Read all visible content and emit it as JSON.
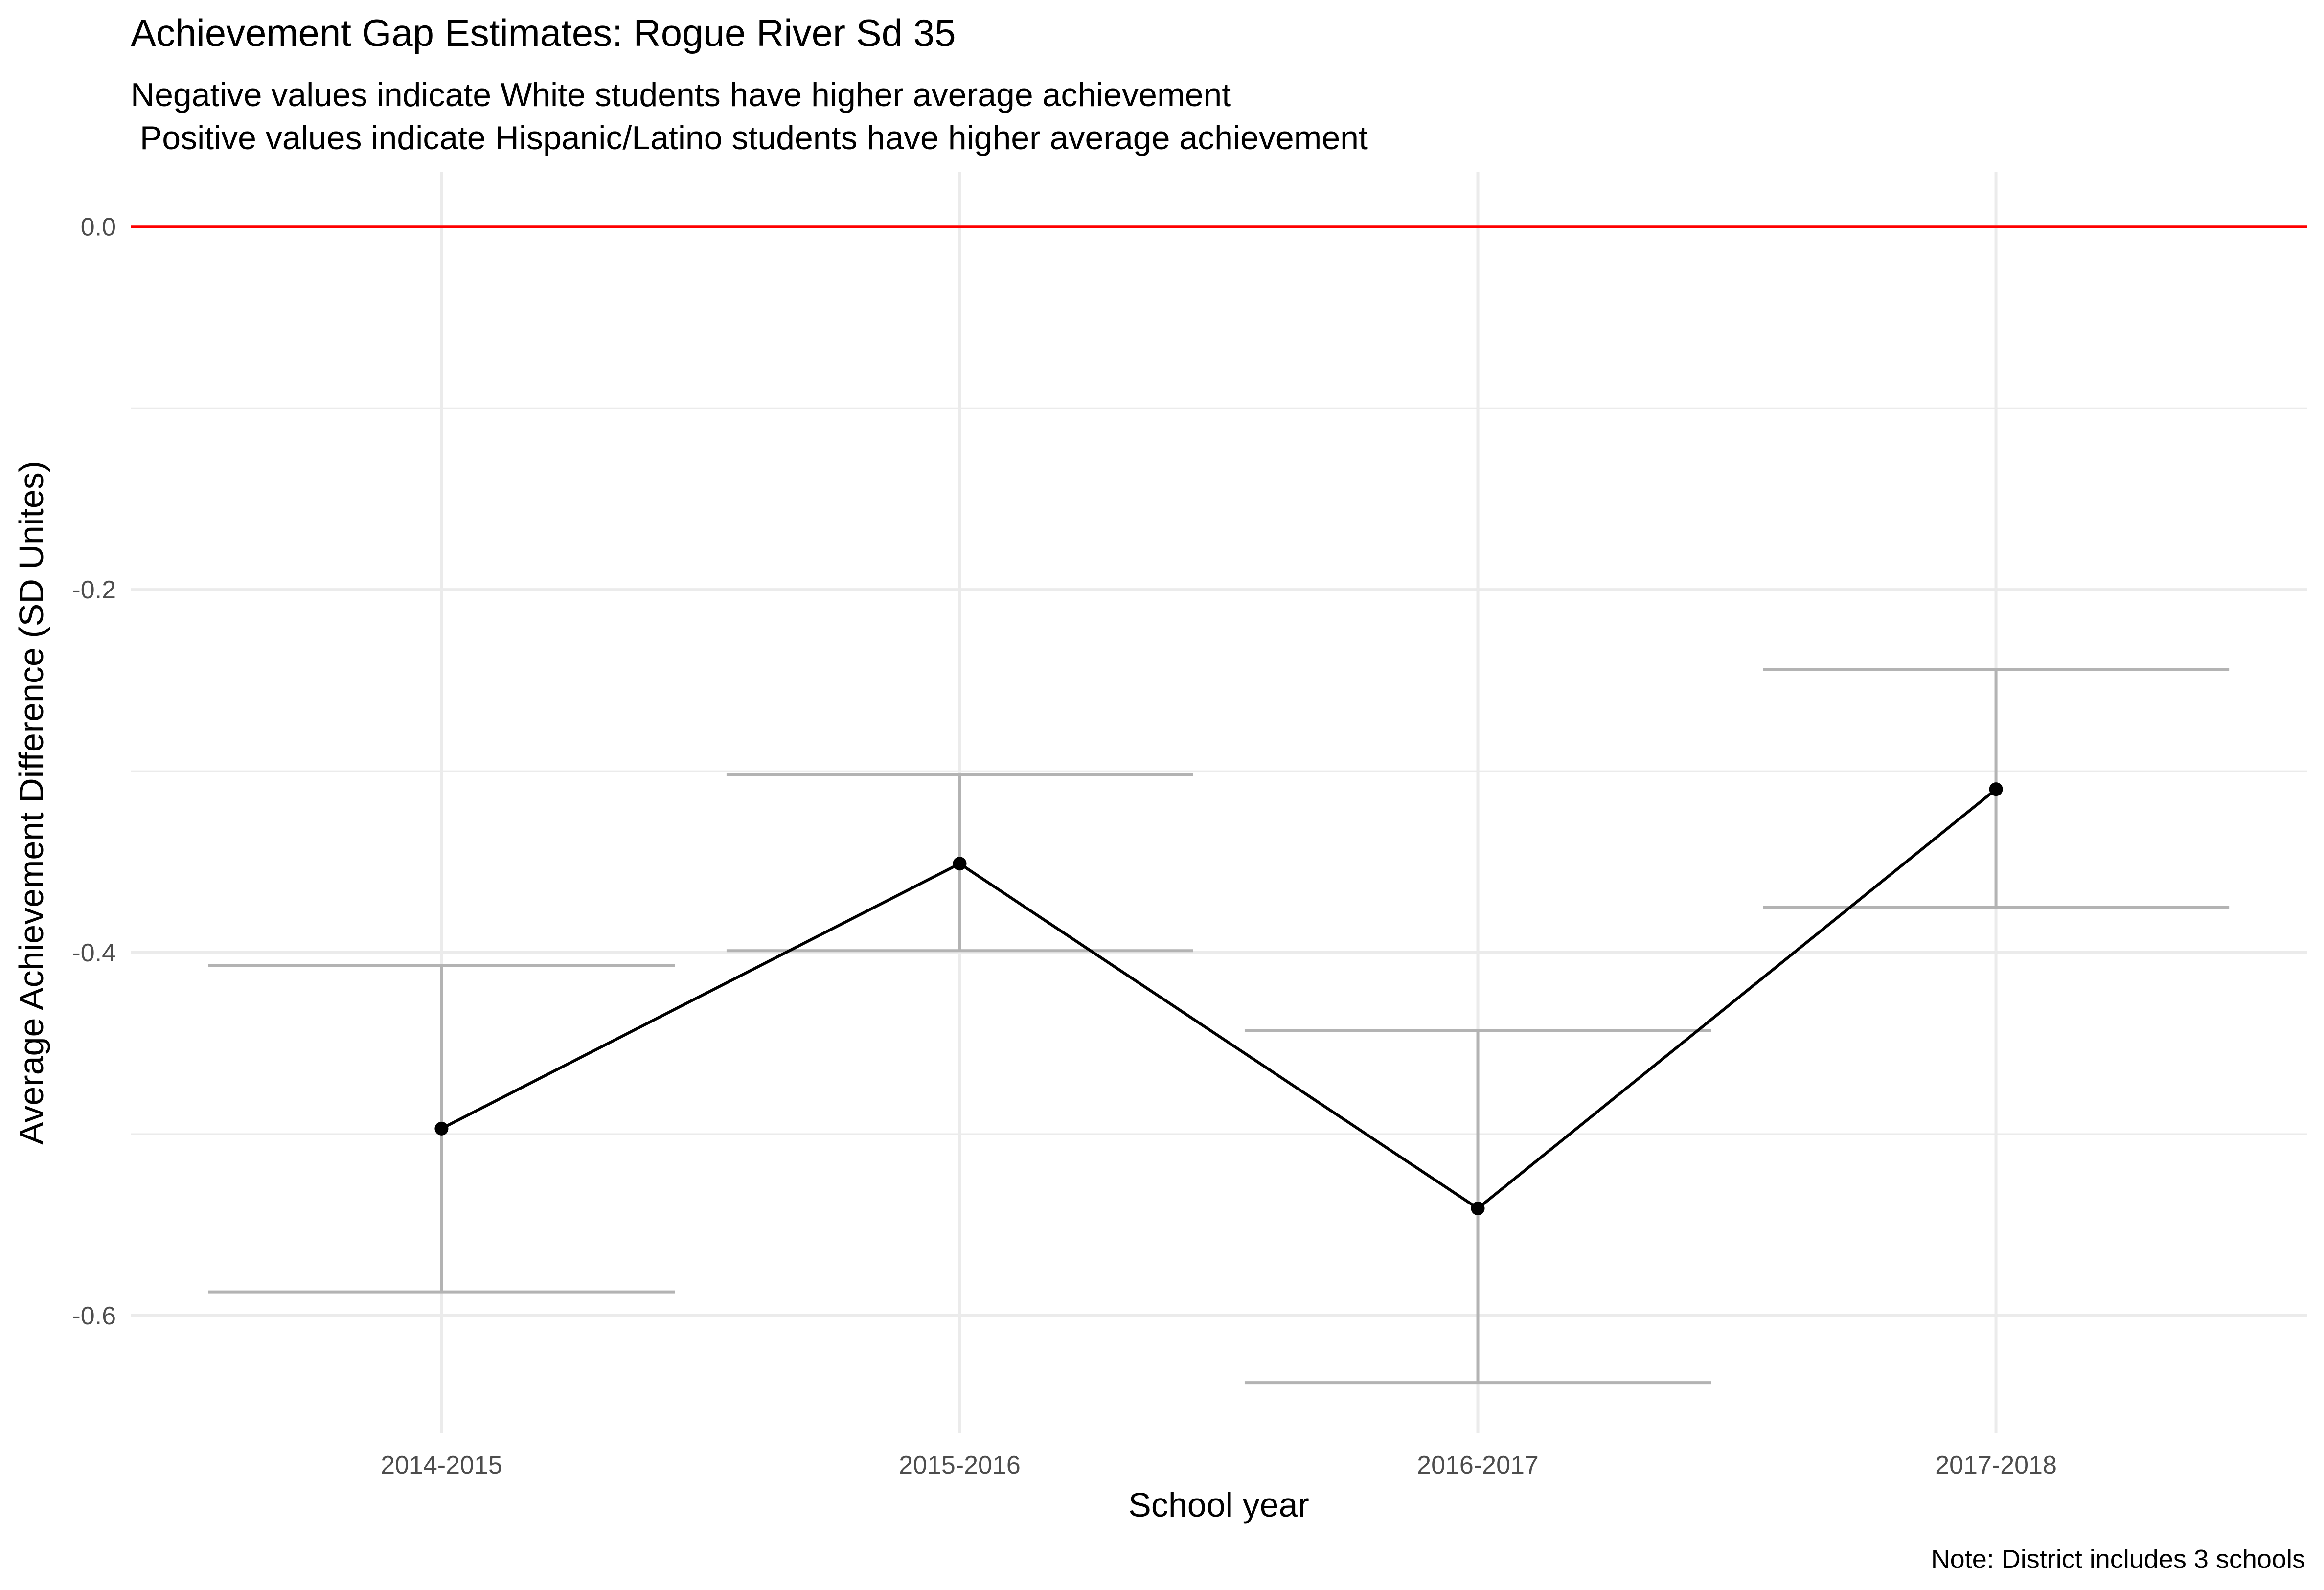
{
  "title": "Achievement Gap Estimates: Rogue River Sd 35",
  "subtitle": "Negative values indicate White students have higher average achievement\n Positive values indicate Hispanic/Latino students have higher average achievement",
  "caption": "Note: District includes 3 schools",
  "chart_data": {
    "type": "line",
    "xlabel": "School year",
    "ylabel": "Average Achievement Difference (SD Unites)",
    "categories": [
      "2014-2015",
      "2015-2016",
      "2016-2017",
      "2017-2018"
    ],
    "values": [
      -0.497,
      -0.351,
      -0.541,
      -0.31
    ],
    "error_low": [
      -0.587,
      -0.399,
      -0.637,
      -0.375
    ],
    "error_high": [
      -0.407,
      -0.302,
      -0.443,
      -0.244
    ],
    "reference_line": 0.0,
    "ylim": [
      -0.665,
      0.03
    ],
    "yticks": [
      0.0,
      -0.2,
      -0.4,
      -0.6
    ],
    "ytick_labels": [
      "0.0",
      "-0.2",
      "-0.4",
      "-0.6"
    ],
    "grid": true,
    "colors": {
      "line": "#000000",
      "point": "#000000",
      "errorbar": "#b3b3b3",
      "reference": "#ff0000",
      "grid": "#ebebeb"
    }
  }
}
